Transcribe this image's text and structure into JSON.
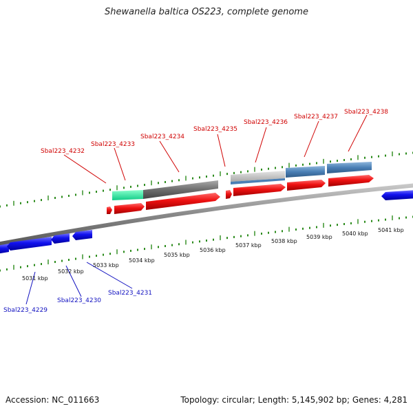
{
  "title": "Shewanella baltica OS223, complete genome",
  "footer": {
    "accession": "Accession: NC_011663",
    "summary": "Topology: circular; Length: 5,145,902 bp; Genes: 4,281"
  },
  "colors": {
    "forward_gene": "#ee1111",
    "reverse_gene": "#1111ee",
    "forward_label": "#d00000",
    "reverse_label": "#1010c0",
    "tick": "#2a8a1a",
    "backbone": "#888888",
    "feature_teal": "#22dd99",
    "feature_gray": "#777777",
    "feature_steel": "#4a7fb5"
  },
  "axis": {
    "kbp_labels": [
      "5031 kbp",
      "5032 kbp",
      "5033 kbp",
      "5034 kbp",
      "5035 kbp",
      "5036 kbp",
      "5037 kbp",
      "5038 kbp",
      "5039 kbp",
      "5040 kbp",
      "5041 kbp"
    ]
  },
  "genes_forward": {
    "labels": [
      "Sbal223_4232",
      "Sbal223_4233",
      "Sbal223_4234",
      "Sbal223_4235",
      "Sbal223_4236",
      "Sbal223_4237",
      "Sbal223_4238"
    ]
  },
  "genes_reverse": {
    "labels": [
      "Sbal223_4229",
      "Sbal223_4230",
      "Sbal223_4231"
    ]
  }
}
